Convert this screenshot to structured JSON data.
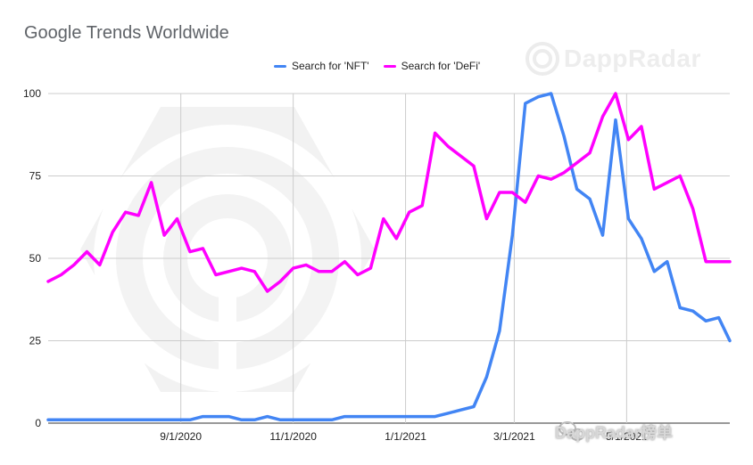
{
  "chart_data": {
    "type": "line",
    "title": "Google Trends Worldwide",
    "xlabel": "",
    "ylabel": "",
    "ylim": [
      0,
      100
    ],
    "yticks": [
      0,
      25,
      50,
      75,
      100
    ],
    "x_tick_labels": [
      "9/1/2020",
      "11/1/2020",
      "1/1/2021",
      "3/1/2021",
      "5/1/2021"
    ],
    "x_tick_dates": [
      "2020-09-01",
      "2020-11-01",
      "2021-01-01",
      "2021-03-01",
      "2021-05-01"
    ],
    "xlim": [
      "2020-06-21",
      "2021-06-26"
    ],
    "grid": true,
    "legend_position": "top",
    "x": [
      "2020-06-21",
      "2020-06-28",
      "2020-07-05",
      "2020-07-12",
      "2020-07-19",
      "2020-07-26",
      "2020-08-02",
      "2020-08-09",
      "2020-08-16",
      "2020-08-23",
      "2020-08-30",
      "2020-09-06",
      "2020-09-13",
      "2020-09-20",
      "2020-09-27",
      "2020-10-04",
      "2020-10-11",
      "2020-10-18",
      "2020-10-25",
      "2020-11-01",
      "2020-11-08",
      "2020-11-15",
      "2020-11-22",
      "2020-11-29",
      "2020-12-06",
      "2020-12-13",
      "2020-12-20",
      "2020-12-27",
      "2021-01-03",
      "2021-01-10",
      "2021-01-17",
      "2021-01-24",
      "2021-01-31",
      "2021-02-07",
      "2021-02-14",
      "2021-02-21",
      "2021-02-28",
      "2021-03-07",
      "2021-03-14",
      "2021-03-21",
      "2021-03-28",
      "2021-04-04",
      "2021-04-11",
      "2021-04-18",
      "2021-04-25",
      "2021-05-02",
      "2021-05-09",
      "2021-05-16",
      "2021-05-23",
      "2021-05-30",
      "2021-06-06",
      "2021-06-13",
      "2021-06-20",
      "2021-06-26"
    ],
    "series": [
      {
        "name": "Search for 'NFT'",
        "color": "#4285f4",
        "values": [
          1,
          1,
          1,
          1,
          1,
          1,
          1,
          1,
          1,
          1,
          1,
          1,
          2,
          2,
          2,
          1,
          1,
          2,
          1,
          1,
          1,
          1,
          1,
          2,
          2,
          2,
          2,
          2,
          2,
          2,
          2,
          3,
          4,
          5,
          14,
          28,
          57,
          97,
          99,
          100,
          87,
          71,
          68,
          57,
          92,
          62,
          56,
          46,
          49,
          35,
          34,
          31,
          32,
          25
        ]
      },
      {
        "name": "Search for 'DeFi'",
        "color": "#ff00ff",
        "values": [
          43,
          45,
          48,
          52,
          48,
          58,
          64,
          63,
          73,
          57,
          62,
          52,
          53,
          45,
          46,
          47,
          46,
          40,
          43,
          47,
          48,
          46,
          46,
          49,
          45,
          47,
          62,
          56,
          64,
          66,
          88,
          84,
          81,
          78,
          62,
          70,
          70,
          67,
          75,
          74,
          76,
          79,
          82,
          93,
          100,
          86,
          90,
          71,
          73,
          75,
          65,
          49,
          49,
          49
        ]
      }
    ]
  },
  "watermark": {
    "brand": "DappRadar",
    "overlay": "DappRadar榜单"
  }
}
